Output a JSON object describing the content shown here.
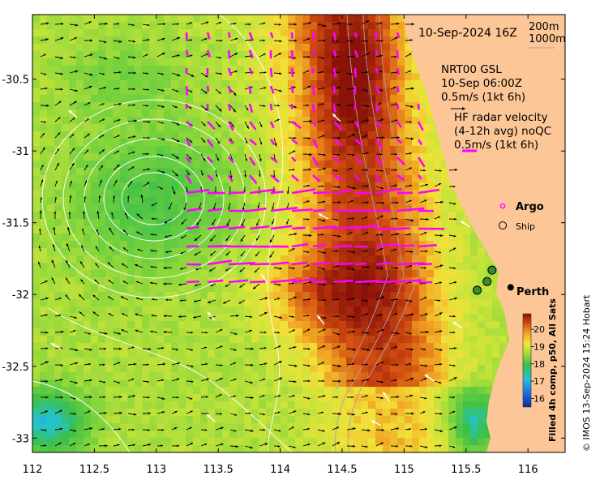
{
  "map": {
    "date_label": "10-Sep-2024 16Z",
    "isobath_labels": [
      "200m",
      "1000m"
    ],
    "altimetry_label": [
      "NRT00 GSL",
      "10-Sep 06:00Z",
      "0.5m/s (1kt 6h)"
    ],
    "hf_radar_label": [
      "HF radar velocity",
      "(4-12h avg) noQC",
      "0.5m/s (1kt 6h)"
    ],
    "legend": {
      "argo": "Argo",
      "ship": "Ship"
    },
    "city": {
      "name": "Perth",
      "lon": 115.86,
      "lat": -31.95
    },
    "colorbar": {
      "title": "Filled 4h comp, p50, All Sats",
      "ticks": [
        16,
        17,
        18,
        19,
        20
      ],
      "range": [
        15.5,
        20.9
      ]
    },
    "credit": "© IMOS 13-Sep-2024 15:24 Hobart",
    "axes": {
      "x_ticks": [
        "112",
        "112.5",
        "113",
        "113.5",
        "114",
        "114.5",
        "115",
        "115.5",
        "116"
      ],
      "y_ticks": [
        "-30.5",
        "-31",
        "-31.5",
        "-32",
        "-32.5",
        "-33"
      ],
      "lon_range": [
        112,
        116.3
      ],
      "lat_range": [
        -33.1,
        -30.05
      ]
    },
    "ships": [
      {
        "lon": 115.71,
        "lat": -31.83
      },
      {
        "lon": 115.67,
        "lat": -31.91
      },
      {
        "lon": 115.59,
        "lat": -31.97
      }
    ],
    "colors": {
      "land": "#fcc697",
      "hf_vectors": "#ff00ff",
      "altimetry_vectors": "#000000",
      "contours": "#ffffff",
      "isobaths": "#b0a0a0"
    }
  }
}
